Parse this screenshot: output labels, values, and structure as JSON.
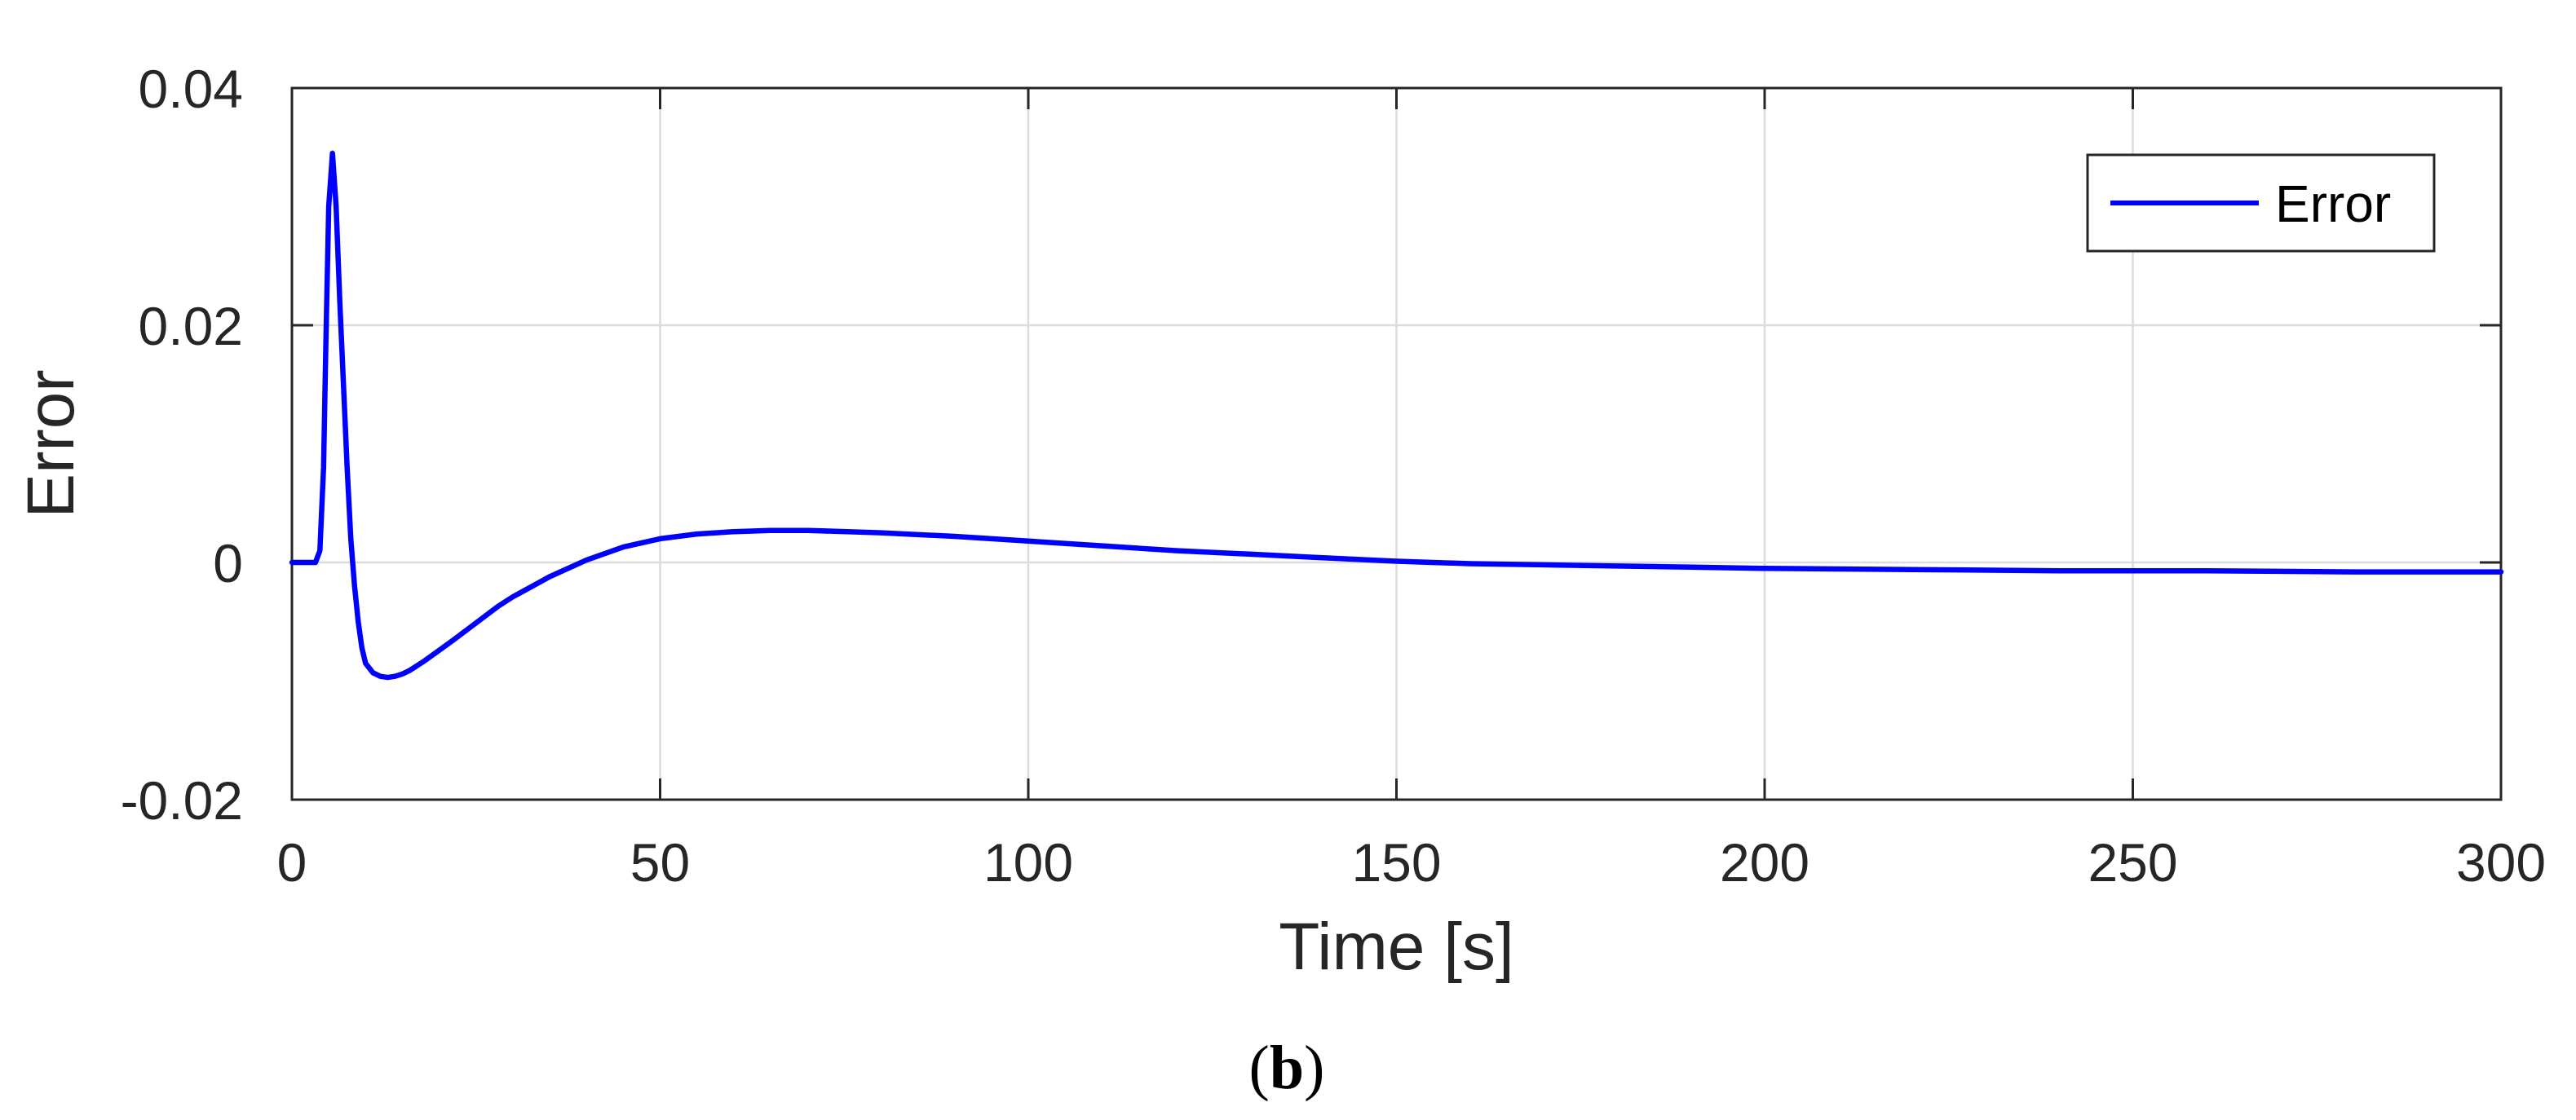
{
  "chart_data": {
    "type": "line",
    "xlabel": "Time [s]",
    "ylabel": "Error",
    "xlim": [
      0,
      300
    ],
    "ylim": [
      -0.02,
      0.04
    ],
    "x_ticks": [
      0,
      50,
      100,
      150,
      200,
      250,
      300
    ],
    "x_tick_labels": [
      "0",
      "50",
      "100",
      "150",
      "200",
      "250",
      "300"
    ],
    "y_ticks": [
      -0.02,
      0,
      0.02,
      0.04
    ],
    "y_tick_labels": [
      "-0.02",
      "0",
      "0.02",
      "0.04"
    ],
    "grid": true,
    "legend_position": "top-right",
    "caption": {
      "open": "(",
      "letter": "b",
      "close": ")"
    },
    "series": [
      {
        "name": "Error",
        "color": "#0000ff",
        "x": [
          0,
          2,
          3.2,
          3.8,
          4.3,
          4.6,
          5,
          5.5,
          6,
          6.5,
          7,
          7.5,
          8,
          8.5,
          9,
          9.5,
          10,
          11,
          12,
          13,
          14,
          15,
          16,
          18,
          20,
          22,
          25,
          28,
          30,
          35,
          40,
          45,
          50,
          55,
          60,
          65,
          70,
          80,
          90,
          100,
          110,
          120,
          130,
          140,
          150,
          160,
          170,
          180,
          190,
          200,
          220,
          240,
          260,
          280,
          300
        ],
        "y": [
          0,
          0,
          0,
          0.001,
          0.008,
          0.018,
          0.03,
          0.0345,
          0.03,
          0.022,
          0.015,
          0.008,
          0.002,
          -0.002,
          -0.005,
          -0.0072,
          -0.0085,
          -0.0093,
          -0.0096,
          -0.0097,
          -0.0096,
          -0.0094,
          -0.0091,
          -0.0083,
          -0.0074,
          -0.0065,
          -0.0051,
          -0.0037,
          -0.0029,
          -0.0012,
          0.0002,
          0.0013,
          0.002,
          0.0024,
          0.0026,
          0.0027,
          0.0027,
          0.0025,
          0.0022,
          0.0018,
          0.0014,
          0.001,
          0.0007,
          0.0004,
          0.0001,
          -0.0001,
          -0.0002,
          -0.0003,
          -0.0004,
          -0.0005,
          -0.0006,
          -0.0007,
          -0.0007,
          -0.0008,
          -0.0008
        ]
      }
    ]
  }
}
